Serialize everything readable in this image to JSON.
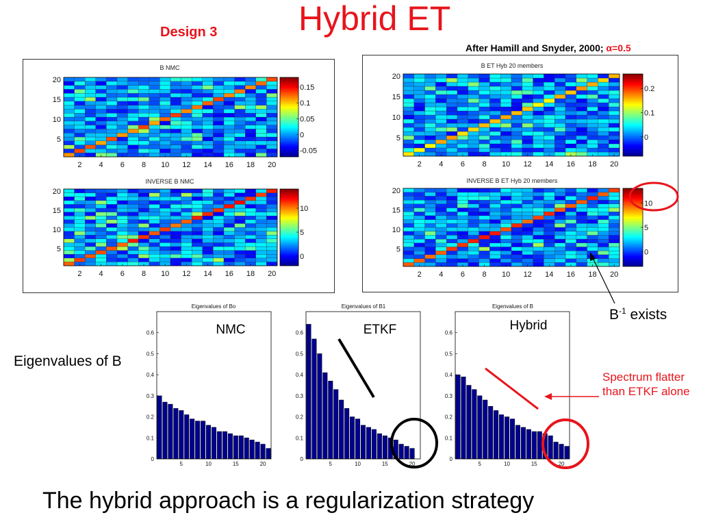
{
  "slide": {
    "title": "Hybrid ET",
    "subtitle": "Design 3",
    "citation_text": "After Hamill and Snyder, 2000; ",
    "citation_alpha": "α=0.5",
    "eigen_label": "Eigenvalues of B",
    "annotation_binv_base": "B",
    "annotation_binv_sup": "-1",
    "annotation_binv_rest": " exists",
    "spectrum_note": "Spectrum flatter than ETKF alone",
    "bottom_text": "The hybrid approach is a regularization strategy"
  },
  "colors": {
    "accent_red": "#e8141b",
    "bar_fill": "#00008f",
    "circle_black": "#000000",
    "circle_red": "#e8141b"
  },
  "chart_data": [
    {
      "type": "heatmap",
      "id": "b_nmc",
      "title": "B NMC",
      "size": 20,
      "x_ticks": [
        2,
        4,
        6,
        8,
        10,
        12,
        14,
        16,
        18,
        20
      ],
      "y_ticks": [
        5,
        10,
        15,
        20
      ],
      "colorbar_ticks": [
        "0.15",
        "0.1",
        "0.05",
        "0",
        "-0.05"
      ],
      "colorbar_range": [
        -0.07,
        0.18
      ],
      "diagonal_value": 0.12,
      "seed": 11
    },
    {
      "type": "heatmap",
      "id": "inv_b_nmc",
      "title": "INVERSE B NMC",
      "size": 20,
      "x_ticks": [
        2,
        4,
        6,
        8,
        10,
        12,
        14,
        16,
        18,
        20
      ],
      "y_ticks": [
        5,
        10,
        15,
        20
      ],
      "colorbar_ticks": [
        "10",
        "5",
        "0"
      ],
      "colorbar_range": [
        -2,
        14
      ],
      "diagonal_value": 11,
      "seed": 23
    },
    {
      "type": "heatmap",
      "id": "b_et_hyb",
      "title": "B ET Hyb 20 members",
      "size": 20,
      "x_ticks": [
        2,
        4,
        6,
        8,
        10,
        12,
        14,
        16,
        18,
        20
      ],
      "y_ticks": [
        5,
        10,
        15,
        20
      ],
      "colorbar_ticks": [
        "0.2",
        "0.1",
        "0"
      ],
      "colorbar_range": [
        -0.08,
        0.26
      ],
      "diagonal_value": 0.15,
      "seed": 37
    },
    {
      "type": "heatmap",
      "id": "inv_b_et_hyb",
      "title": "INVERSE B ET Hyb 20 members",
      "size": 20,
      "x_ticks": [
        2,
        4,
        6,
        8,
        10,
        12,
        14,
        16,
        18,
        20
      ],
      "y_ticks": [
        5,
        10,
        15,
        20
      ],
      "colorbar_ticks": [
        "10",
        "5",
        "0"
      ],
      "colorbar_range": [
        -3,
        13
      ],
      "diagonal_value": 10,
      "seed": 53
    },
    {
      "type": "bar",
      "id": "eig_bo",
      "title": "Eigenvalues of Bo",
      "panel_label": "NMC",
      "x": [
        1,
        2,
        3,
        4,
        5,
        6,
        7,
        8,
        9,
        10,
        11,
        12,
        13,
        14,
        15,
        16,
        17,
        18,
        19,
        20,
        21
      ],
      "values": [
        0.3,
        0.27,
        0.26,
        0.24,
        0.23,
        0.21,
        0.19,
        0.18,
        0.18,
        0.16,
        0.15,
        0.13,
        0.13,
        0.12,
        0.11,
        0.11,
        0.1,
        0.09,
        0.08,
        0.07,
        0.05
      ],
      "x_ticks": [
        5,
        10,
        15,
        20
      ],
      "y_ticks": [
        0,
        0.1,
        0.2,
        0.3,
        0.4,
        0.5,
        0.6
      ],
      "ylim": [
        0,
        0.7
      ],
      "xlim": [
        0.5,
        21.5
      ]
    },
    {
      "type": "bar",
      "id": "eig_b1",
      "title": "Eigenvalues of B1",
      "panel_label": "ETKF",
      "x": [
        1,
        2,
        3,
        4,
        5,
        6,
        7,
        8,
        9,
        10,
        11,
        12,
        13,
        14,
        15,
        16,
        17,
        18,
        19,
        20
      ],
      "values": [
        0.64,
        0.57,
        0.5,
        0.41,
        0.37,
        0.33,
        0.28,
        0.24,
        0.2,
        0.19,
        0.16,
        0.15,
        0.14,
        0.12,
        0.11,
        0.1,
        0.09,
        0.07,
        0.06,
        0.05
      ],
      "x_ticks": [
        5,
        10,
        15,
        20
      ],
      "y_ticks": [
        0,
        0.1,
        0.2,
        0.3,
        0.4,
        0.5,
        0.6
      ],
      "ylim": [
        0,
        0.7
      ],
      "xlim": [
        0.5,
        21.5
      ]
    },
    {
      "type": "bar",
      "id": "eig_b",
      "title": "Eigenvalues of B",
      "panel_label": "Hybrid",
      "x": [
        1,
        2,
        3,
        4,
        5,
        6,
        7,
        8,
        9,
        10,
        11,
        12,
        13,
        14,
        15,
        16,
        17,
        18,
        19,
        20,
        21
      ],
      "values": [
        0.4,
        0.39,
        0.35,
        0.33,
        0.3,
        0.28,
        0.25,
        0.23,
        0.21,
        0.2,
        0.19,
        0.16,
        0.15,
        0.14,
        0.13,
        0.13,
        0.12,
        0.11,
        0.08,
        0.07,
        0.06
      ],
      "x_ticks": [
        5,
        10,
        15,
        20
      ],
      "y_ticks": [
        0,
        0.1,
        0.2,
        0.3,
        0.4,
        0.5,
        0.6
      ],
      "ylim": [
        0,
        0.7
      ],
      "xlim": [
        0.5,
        21.5
      ]
    }
  ]
}
